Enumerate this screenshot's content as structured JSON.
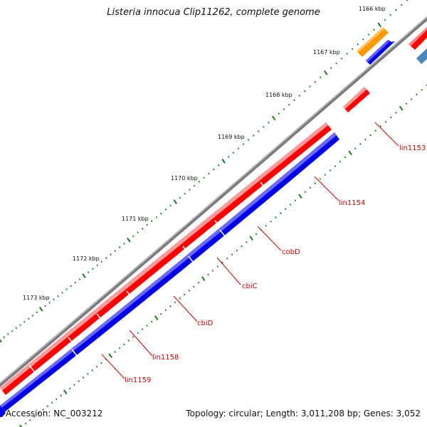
{
  "title": "Listeria innocua Clip11262, complete genome",
  "footer": {
    "accession": "Accession: NC_003212",
    "summary": "Topology: circular; Length: 3,011,208 bp; Genes: 3,052"
  },
  "scale_labels": [
    "1166 kbp",
    "1167 kbp",
    "1168 kbp",
    "1169 kbp",
    "1170 kbp",
    "1171 kbp",
    "1172 kbp",
    "1173 kbp"
  ],
  "gene_labels": [
    "lin1153",
    "lin1154",
    "cobD",
    "cbiC",
    "cbiD",
    "lin1158",
    "lin1159"
  ],
  "colors": {
    "forward_gene": "#ff0000",
    "reverse_gene": "#0000e6",
    "orange_feature": "#ff9900",
    "steelblue_feature": "#4a86c0",
    "backbone": "#7a7a80",
    "tick": "#1a7a1a",
    "label": "#cc0000"
  }
}
